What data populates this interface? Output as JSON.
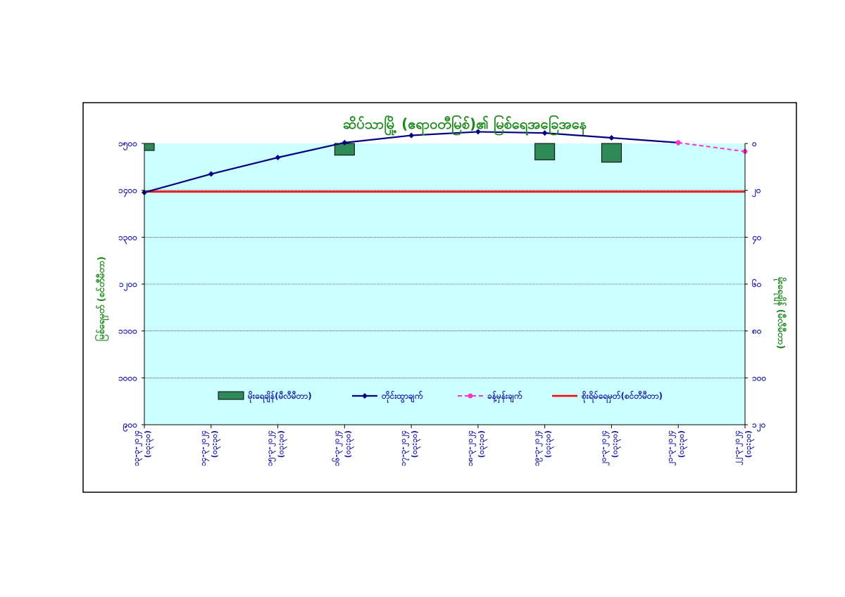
{
  "chart_data": {
    "type": "line",
    "title": "ဆိပ်သာမြို့ (ဧရာဝတီမြစ်)၏ မြစ်ရေအခြေအနေ",
    "ylabel_left": "မြစ်ရေမှတ် (စင်တီမီတာ)",
    "ylabel_right": "မိုးရေချိန် (မီလီမီတာ)",
    "y_left_range": [
      900,
      1600
    ],
    "y_left_ticks": [
      "၉၀၀",
      "၁၀၀၀",
      "၁၁၀၀",
      "၁၂၀၀",
      "၁၃၀၀",
      "၁၄၀၀",
      "၁၅၀၀",
      "၁၆၀၀"
    ],
    "y_right_range": [
      0,
      120
    ],
    "y_right_reversed": true,
    "y_right_ticks": [
      "၀",
      "၂၀",
      "၄၀",
      "၆၀",
      "၈၀",
      "၁၀၀",
      "၁၂၀"
    ],
    "categories": [
      [
        "၁၃-၃-၂၀၂၄",
        "(၀၃:၃၀)"
      ],
      [
        "၁၄-၃-၂၀၂၄",
        "(၀၃:၃၀)"
      ],
      [
        "၁၅-၃-၂၀၂၄",
        "(၀၃:၃၀)"
      ],
      [
        "၁၆-၃-၂၀၂၄",
        "(၀၃:၃၀)"
      ],
      [
        "၁၇-၃-၂၀၂၄",
        "(၀၃:၃၀)"
      ],
      [
        "၁၈-၃-၂၀၂၄",
        "(၀၃:၃၀)"
      ],
      [
        "၁၉-၃-၂၀၂၄",
        "(၀၃:၃၀)"
      ],
      [
        "၂၀-၃-၂၀၂၄",
        "(၀၃:၃၀)"
      ],
      [
        "၂၁-၃-၂၀၂၄",
        "(၀၃:၃၀)"
      ],
      [
        "၂၂-၃-၂၀၂၄",
        "(၀၃:၃၀)"
      ]
    ],
    "series": [
      {
        "name": "မိုးရေချိန်(မီလီမီတာ)",
        "type": "bar",
        "axis": "right",
        "color": "#2e8b57",
        "values": [
          3,
          null,
          null,
          5,
          null,
          null,
          7,
          8,
          null,
          null
        ]
      },
      {
        "name": "တိုင်းထွာချက်",
        "type": "line",
        "axis": "left",
        "color": "#000080",
        "values": [
          1478,
          1524,
          1565,
          1602,
          1620,
          1629,
          1626,
          1614,
          1602,
          null
        ]
      },
      {
        "name": "ခန့်မှန်းချက်",
        "type": "line",
        "axis": "left",
        "color": "#ff33cc",
        "dashed": true,
        "values": [
          null,
          null,
          null,
          null,
          null,
          null,
          null,
          null,
          1602,
          1580
        ]
      },
      {
        "name": "စိုးရိမ်ရေမှတ်(စင်တီမီတာ)",
        "type": "line",
        "axis": "left",
        "color": "#ff0000",
        "values": [
          1480,
          1480,
          1480,
          1480,
          1480,
          1480,
          1480,
          1480,
          1480,
          1480
        ]
      }
    ],
    "grid": true,
    "legend_position": "bottom-inside"
  }
}
